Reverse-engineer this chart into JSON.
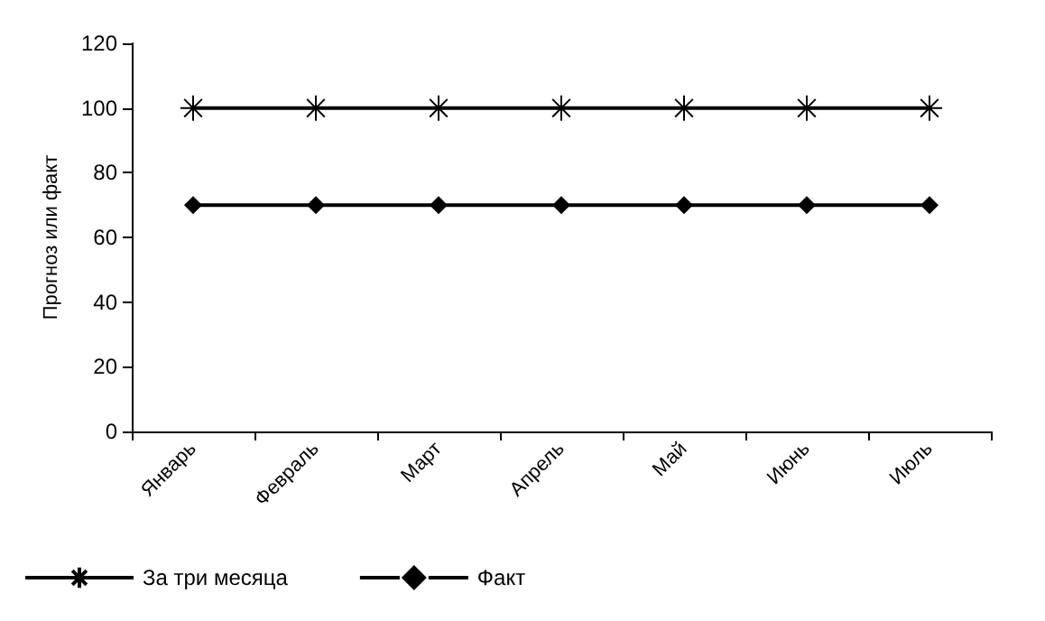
{
  "chart_data": {
    "type": "line",
    "ylabel": "Прогноз или факт",
    "categories": [
      "Январь",
      "Февраль",
      "Март",
      "Апрель",
      "Май",
      "Июнь",
      "Июль"
    ],
    "series": [
      {
        "name": "За три месяца",
        "color": "#000000",
        "marker": "cross",
        "values": [
          100,
          100,
          100,
          100,
          100,
          100,
          100
        ]
      },
      {
        "name": "Факт",
        "color": "#000000",
        "marker": "diamond",
        "values": [
          70,
          70,
          70,
          70,
          70,
          70,
          70
        ]
      }
    ],
    "ylim": [
      0,
      120
    ],
    "yticks": [
      0,
      20,
      40,
      60,
      80,
      100,
      120
    ],
    "grid": false,
    "legend": "bottom left"
  }
}
